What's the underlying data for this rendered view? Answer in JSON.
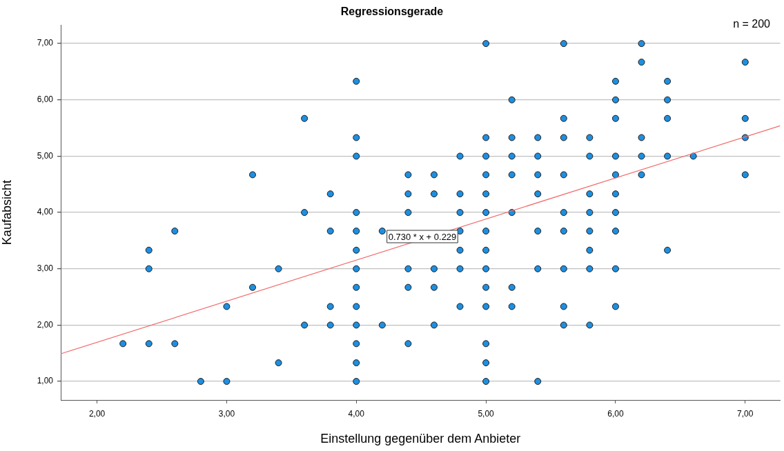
{
  "chart_data": {
    "type": "scatter",
    "title": "Regressionsgerade",
    "xlabel": "Einstellung gegenüber dem Anbieter",
    "ylabel": "Kaufabsicht",
    "annotations": [
      "n = 200",
      "0.730 * x + 0.229"
    ],
    "xlim": [
      1.72,
      7.27
    ],
    "ylim": [
      0.67,
      7.33
    ],
    "xticks": [
      {
        "value": 2,
        "label": "2,00"
      },
      {
        "value": 3,
        "label": "3,00"
      },
      {
        "value": 4,
        "label": "4,00"
      },
      {
        "value": 5,
        "label": "5,00"
      },
      {
        "value": 6,
        "label": "6,00"
      },
      {
        "value": 7,
        "label": "7,00"
      }
    ],
    "yticks": [
      {
        "value": 1,
        "label": "1,00"
      },
      {
        "value": 2,
        "label": "2,00"
      },
      {
        "value": 3,
        "label": "3,00"
      },
      {
        "value": 4,
        "label": "4,00"
      },
      {
        "value": 5,
        "label": "5,00"
      },
      {
        "value": 6,
        "label": "6,00"
      },
      {
        "value": 7,
        "label": "7,00"
      }
    ],
    "grid": "y",
    "legend": false,
    "series": [
      {
        "color": "#1e8fe0",
        "marker": "circle",
        "x": [
          2.2,
          2.4,
          2.4,
          2.4,
          2.6,
          2.6,
          2.8,
          3,
          3,
          3.2,
          3.2,
          3.4,
          3.4,
          3.6,
          3.6,
          3.6,
          3.8,
          3.8,
          3.8,
          3.8,
          4,
          4,
          4,
          4,
          4,
          4,
          4,
          4,
          4,
          4,
          4,
          4,
          4,
          4.2,
          4.2,
          4.4,
          4.4,
          4.4,
          4.4,
          4.4,
          4.4,
          4.6,
          4.6,
          4.6,
          4.6,
          4.6,
          4.8,
          4.8,
          4.8,
          4.8,
          4.8,
          4.8,
          4.8,
          5,
          5,
          5,
          5,
          5,
          5,
          5,
          5,
          5,
          5,
          5,
          5,
          5,
          5,
          5.2,
          5.2,
          5.2,
          5.2,
          5.2,
          5.2,
          5.2,
          5.4,
          5.4,
          5.4,
          5.4,
          5.4,
          5.4,
          5.4,
          5.6,
          5.6,
          5.6,
          5.6,
          5.6,
          5.6,
          5.6,
          5.6,
          5.6,
          5.8,
          5.8,
          5.8,
          5.8,
          5.8,
          5.8,
          5.8,
          5.8,
          6,
          6,
          6,
          6,
          6,
          6,
          6,
          6,
          6,
          6,
          6.2,
          6.2,
          6.2,
          6.2,
          6.2,
          6.4,
          6.4,
          6.4,
          6.4,
          6.4,
          6.6,
          7,
          7,
          7,
          7
        ],
        "values": [
          1.67,
          3.33,
          3,
          1.67,
          3.67,
          1.67,
          1,
          2.33,
          1,
          4.67,
          2.67,
          3,
          1.33,
          5.67,
          4,
          2,
          4.33,
          3.67,
          2.33,
          2,
          6.33,
          5.33,
          5,
          4,
          3.67,
          3.33,
          3,
          2.67,
          2.33,
          2,
          1.67,
          1.33,
          1,
          3.67,
          2,
          4.67,
          4.33,
          4,
          3,
          2.67,
          1.67,
          4.67,
          4.33,
          3,
          2.67,
          2,
          5,
          4.33,
          4,
          3.67,
          3.33,
          3,
          2.33,
          7,
          5.33,
          5,
          4.67,
          4.33,
          4,
          3.67,
          3.33,
          3,
          2.67,
          2.33,
          1.67,
          1.33,
          1,
          6,
          5.33,
          5,
          4.67,
          4,
          2.67,
          2.33,
          5.33,
          5,
          4.67,
          4.33,
          3.67,
          3,
          1,
          7,
          5.67,
          5.33,
          4.67,
          4,
          3.67,
          3,
          2.33,
          2,
          5.33,
          5,
          4.33,
          4,
          3.67,
          3.33,
          3,
          2,
          6.33,
          6,
          5.67,
          5,
          4.67,
          4.33,
          4,
          3.67,
          3,
          2.33,
          7,
          6.67,
          5.33,
          5,
          4.67,
          6.33,
          6,
          5.67,
          5,
          3.33,
          5,
          6.67,
          5.67,
          5.33,
          4.67
        ]
      },
      {
        "type": "line",
        "color": "#f26b6b",
        "marker": "none",
        "line_style": "solid",
        "x": [
          1.72,
          7.27
        ],
        "values": [
          1.49,
          5.54
        ]
      }
    ]
  }
}
